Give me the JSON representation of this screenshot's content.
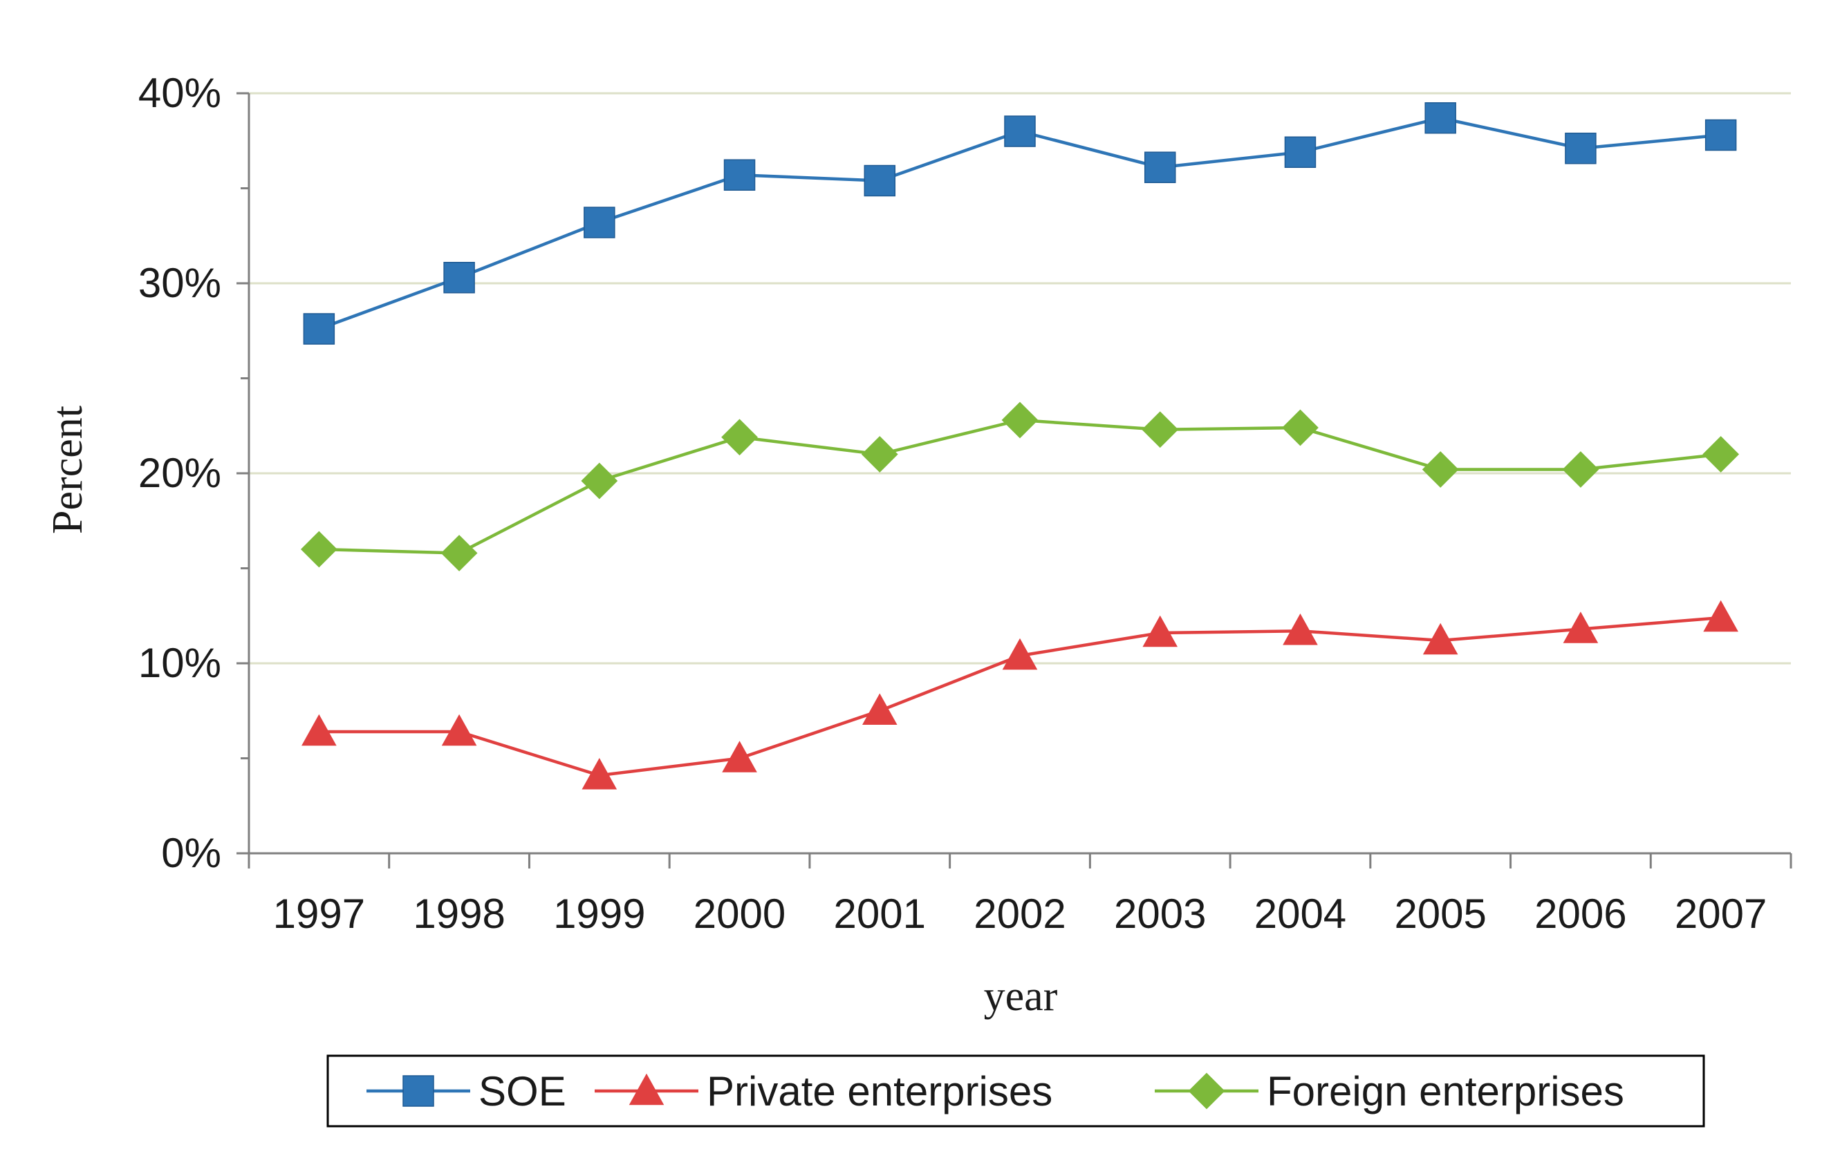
{
  "chart_data": {
    "type": "line",
    "title": "",
    "xlabel": "year",
    "ylabel": "Percent",
    "categories": [
      "1997",
      "1998",
      "1999",
      "2000",
      "2001",
      "2002",
      "2003",
      "2004",
      "2005",
      "2006",
      "2007"
    ],
    "ylim": [
      0,
      40
    ],
    "yticks": [
      0,
      10,
      20,
      30,
      40
    ],
    "ytick_labels": [
      "0%",
      "10%",
      "20%",
      "30%",
      "40%"
    ],
    "grid": true,
    "legend_position": "bottom",
    "series": [
      {
        "name": "SOE",
        "marker": "square",
        "color": "#2E75B6",
        "values": [
          27.6,
          30.3,
          33.2,
          35.7,
          35.4,
          38.0,
          36.1,
          36.9,
          38.7,
          37.1,
          37.8
        ]
      },
      {
        "name": "Private enterprises",
        "marker": "triangle",
        "color": "#E04040",
        "values": [
          6.4,
          6.4,
          4.1,
          5.0,
          7.5,
          10.4,
          11.6,
          11.7,
          11.2,
          11.8,
          12.4
        ]
      },
      {
        "name": "Foreign enterprises",
        "marker": "diamond",
        "color": "#7DB93A",
        "values": [
          16.0,
          15.8,
          19.6,
          21.9,
          21.0,
          22.8,
          22.3,
          22.4,
          20.2,
          20.2,
          21.0
        ]
      }
    ]
  }
}
